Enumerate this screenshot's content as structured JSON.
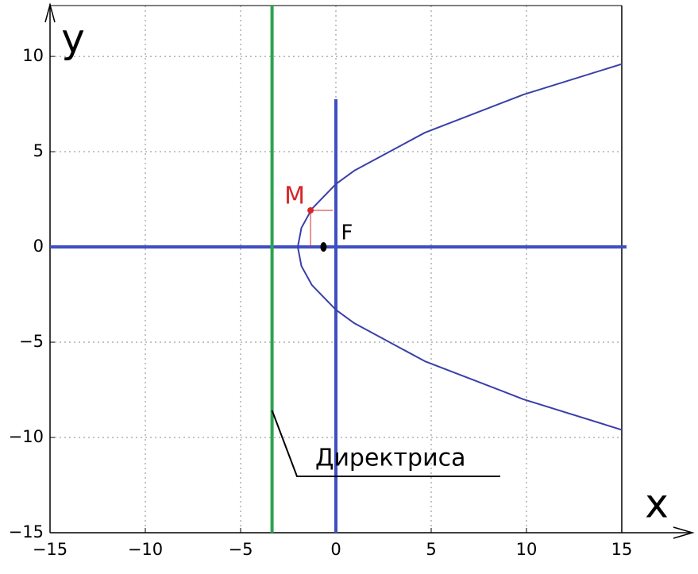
{
  "chart_data": {
    "type": "line",
    "x_label": "x",
    "y_label": "y",
    "xlim": [
      -15,
      15
    ],
    "ylim": [
      -15,
      12.67
    ],
    "xticks": [
      {
        "value": -15,
        "label": "−15"
      },
      {
        "value": -10,
        "label": "−10"
      },
      {
        "value": -5,
        "label": "−5"
      },
      0,
      5,
      10,
      15
    ],
    "yticks": [
      {
        "value": -15,
        "label": "−15"
      },
      {
        "value": -10,
        "label": "−10"
      },
      {
        "value": -5,
        "label": "−5"
      },
      0,
      5,
      10
    ],
    "grid": true,
    "series": [
      {
        "color": "#3a3fa8",
        "x": [
          15,
          9.85,
          4.67,
          0.96,
          0,
          -1.26,
          -1.81,
          -2,
          -1.81,
          -1.26,
          0,
          0.96,
          4.67,
          9.85,
          15
        ],
        "values": [
          -9.6,
          -8,
          -6,
          -4,
          -3.3,
          -2,
          -1,
          0,
          1,
          2,
          3.3,
          4,
          6,
          8,
          9.6
        ]
      }
    ],
    "directrix": {
      "x": -3.35,
      "color": "#2ca44e",
      "label": "Директриса"
    },
    "focus": {
      "x": -0.65,
      "y": 0,
      "label": "F"
    },
    "point": {
      "x": -1.33,
      "y": 1.92,
      "label": "M",
      "color": "#d62728"
    }
  }
}
